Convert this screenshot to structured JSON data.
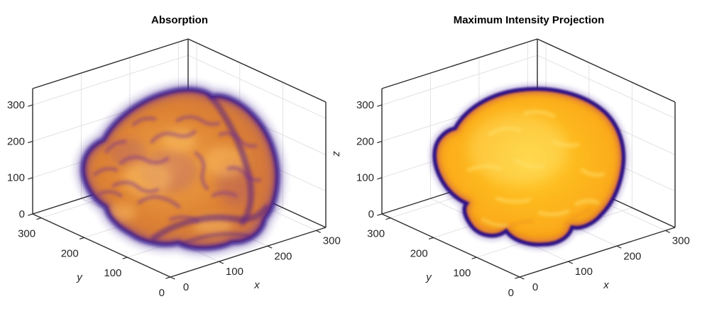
{
  "figure": {
    "background": "#ffffff",
    "text_color": "#262626",
    "grid_color": "#e2e2e2",
    "axis_color": "#2b2b2b"
  },
  "chart_data": [
    {
      "type": "volume-render-3d",
      "title": "Absorption",
      "description": "Human brain MRI volume shown with absorption volume rendering: orange tissue with indigo-purple surface and sulci folds",
      "xlabel": "x",
      "ylabel": "y",
      "zlabel": "",
      "xticks": [
        0,
        100,
        200,
        300
      ],
      "yticks": [
        0,
        100,
        200,
        300
      ],
      "zticks": [
        0,
        100,
        200,
        300
      ],
      "xlim": [
        0,
        320
      ],
      "ylim": [
        0,
        320
      ],
      "zlim": [
        0,
        345
      ],
      "grid": true,
      "legend": false,
      "colors": {
        "core": "#dd8334",
        "highlight": "#f0a446",
        "folds": "#7a3490",
        "rim": "#3a1b8e"
      }
    },
    {
      "type": "volume-render-3d",
      "title": "Maximum Intensity Projection",
      "description": "Human brain MRI volume shown as maximum intensity projection: bright yellow-orange interior with a thin dark indigo rim",
      "xlabel": "x",
      "ylabel": "y",
      "zlabel": "z",
      "xticks": [
        0,
        100,
        200,
        300
      ],
      "yticks": [
        0,
        100,
        200,
        300
      ],
      "zticks": [
        0,
        100,
        200,
        300
      ],
      "xlim": [
        0,
        320
      ],
      "ylim": [
        0,
        320
      ],
      "zlim": [
        0,
        345
      ],
      "grid": true,
      "legend": false,
      "colors": {
        "core": "#fdb41c",
        "highlight": "#ffd237",
        "transition": "#9c2c8e",
        "rim": "#2c1183"
      }
    }
  ]
}
